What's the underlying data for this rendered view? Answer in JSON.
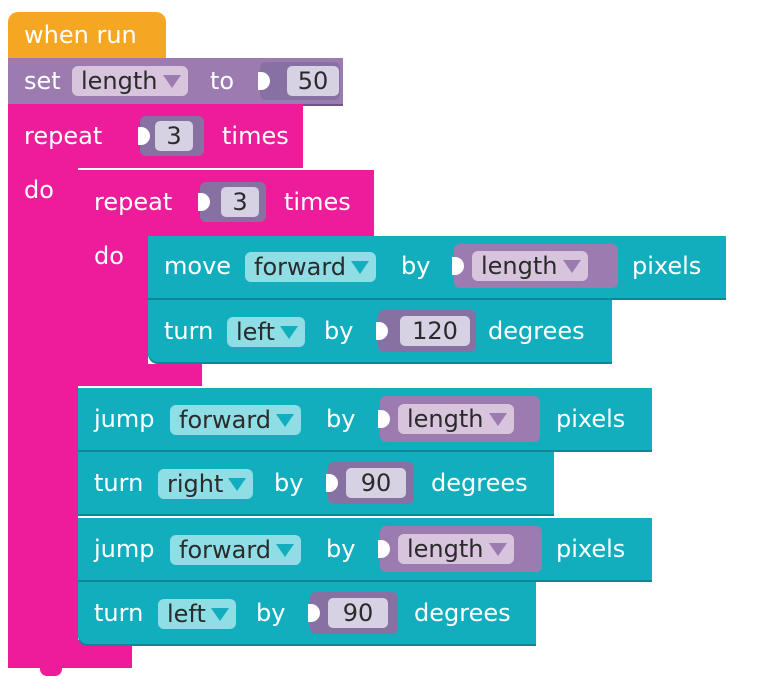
{
  "hat": {
    "label": "when run"
  },
  "set": {
    "label_set": "set",
    "variable": "length",
    "label_to": "to",
    "value": "50"
  },
  "outer_repeat": {
    "label_repeat": "repeat",
    "count": "3",
    "label_times": "times",
    "label_do": "do"
  },
  "inner_repeat": {
    "label_repeat": "repeat",
    "count": "3",
    "label_times": "times",
    "label_do": "do"
  },
  "inner_move": {
    "verb": "move",
    "direction": "forward",
    "label_by": "by",
    "variable": "length",
    "unit": "pixels"
  },
  "inner_turn": {
    "verb": "turn",
    "direction": "left",
    "label_by": "by",
    "value": "120",
    "unit": "degrees"
  },
  "jump1": {
    "verb": "jump",
    "direction": "forward",
    "label_by": "by",
    "variable": "length",
    "unit": "pixels"
  },
  "turn1": {
    "verb": "turn",
    "direction": "right",
    "label_by": "by",
    "value": "90",
    "unit": "degrees"
  },
  "jump2": {
    "verb": "jump",
    "direction": "forward",
    "label_by": "by",
    "variable": "length",
    "unit": "pixels"
  },
  "turn2": {
    "verb": "turn",
    "direction": "left",
    "label_by": "by",
    "value": "90",
    "unit": "degrees"
  },
  "colors": {
    "event": "#f5a623",
    "variable_set": "#9b7bb0",
    "loop": "#ec1c9b",
    "motion": "#13aebe",
    "dropdown_motion": "#8fdde5",
    "dropdown_variable": "#d9c4dd",
    "number_plug": "#8771a3",
    "number_field": "#d6d1e3"
  }
}
